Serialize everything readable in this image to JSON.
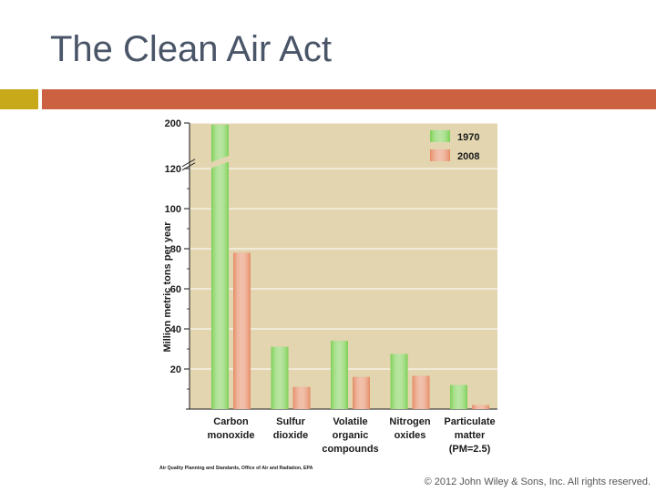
{
  "slide": {
    "title": "The Clean Air Act",
    "copyright": "© 2012 John Wiley & Sons, Inc. All rights reserved.",
    "colors": {
      "title": "#4a5568",
      "accent_yellow": "#c8a91a",
      "accent_red": "#cc6142"
    }
  },
  "chart_data": {
    "type": "bar",
    "title": "",
    "ylabel": "Million metric tons per year",
    "xlabel": "",
    "categories": [
      [
        "Carbon",
        "monoxide"
      ],
      [
        "Sulfur",
        "dioxide"
      ],
      [
        "Volatile",
        "organic",
        "compounds"
      ],
      [
        "Nitrogen",
        "oxides"
      ],
      [
        "Particulate",
        "matter",
        "(PM=2.5)"
      ]
    ],
    "series": [
      {
        "name": "1970",
        "values": [
          197,
          31,
          34,
          27.5,
          12
        ],
        "color": "#7ccf52"
      },
      {
        "name": "2008",
        "values": [
          78,
          11,
          16,
          16.5,
          2
        ],
        "color": "#e58a63"
      }
    ],
    "ylim": [
      0,
      200
    ],
    "axis_break": {
      "from": 120,
      "to": 200
    },
    "yticks": [
      20,
      40,
      60,
      80,
      100,
      120,
      200
    ],
    "legend_position": "top-right",
    "grid": true,
    "background": "#e2d5b0",
    "source": "Air Quality Planning and Standards, Office of Air and Radiation, EPA"
  }
}
